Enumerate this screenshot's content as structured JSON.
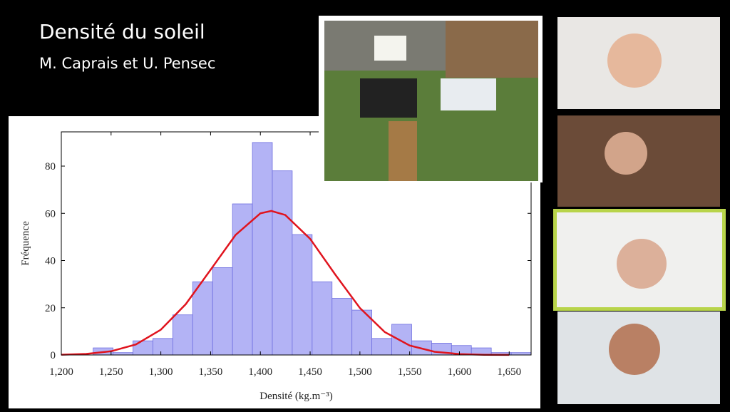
{
  "slide": {
    "title": "Densité du soleil",
    "authors": "M. Caprais et U. Pensec"
  },
  "chart_data": {
    "type": "histogram",
    "xlabel": "Densité (kg.m⁻³)",
    "ylabel": "Fréquence",
    "bins": [
      1232,
      1252,
      1272,
      1292,
      1312,
      1332,
      1352,
      1372,
      1392,
      1412,
      1432,
      1452,
      1472,
      1492,
      1512,
      1532,
      1552,
      1572,
      1592,
      1612,
      1632,
      1652,
      1672
    ],
    "values": [
      3,
      1,
      6,
      7,
      17,
      31,
      37,
      64,
      90,
      78,
      51,
      31,
      24,
      19,
      7,
      13,
      6,
      5,
      4,
      3,
      1,
      1
    ],
    "color": "#b3b3f5",
    "edge_color": "#6f6fe0",
    "curve": {
      "type": "line",
      "color": "#e0141e",
      "x": [
        1200,
        1225,
        1250,
        1275,
        1300,
        1325,
        1350,
        1375,
        1400,
        1411,
        1425,
        1450,
        1475,
        1500,
        1525,
        1550,
        1575,
        1600,
        1625,
        1650
      ],
      "values": [
        0.11,
        0.46,
        1.57,
        4.48,
        10.7,
        21.5,
        36.1,
        50.8,
        60.0,
        61,
        59.3,
        49.2,
        34.2,
        19.9,
        9.7,
        4.0,
        1.37,
        0.39,
        0.09,
        0.02
      ]
    },
    "xlim": [
      1200,
      1672
    ],
    "ylim": [
      0,
      94.5
    ],
    "xticks": [
      {
        "value": 1200,
        "label": "1,200"
      },
      {
        "value": 1250,
        "label": "1,250"
      },
      {
        "value": 1300,
        "label": "1,300"
      },
      {
        "value": 1350,
        "label": "1,350"
      },
      {
        "value": 1400,
        "label": "1,400"
      },
      {
        "value": 1450,
        "label": "1,450"
      },
      {
        "value": 1500,
        "label": "1,500"
      },
      {
        "value": 1550,
        "label": "1,550"
      },
      {
        "value": 1600,
        "label": "1,600"
      },
      {
        "value": 1650,
        "label": "1,650"
      }
    ],
    "yticks": [
      0,
      20,
      40,
      60,
      80
    ]
  }
}
